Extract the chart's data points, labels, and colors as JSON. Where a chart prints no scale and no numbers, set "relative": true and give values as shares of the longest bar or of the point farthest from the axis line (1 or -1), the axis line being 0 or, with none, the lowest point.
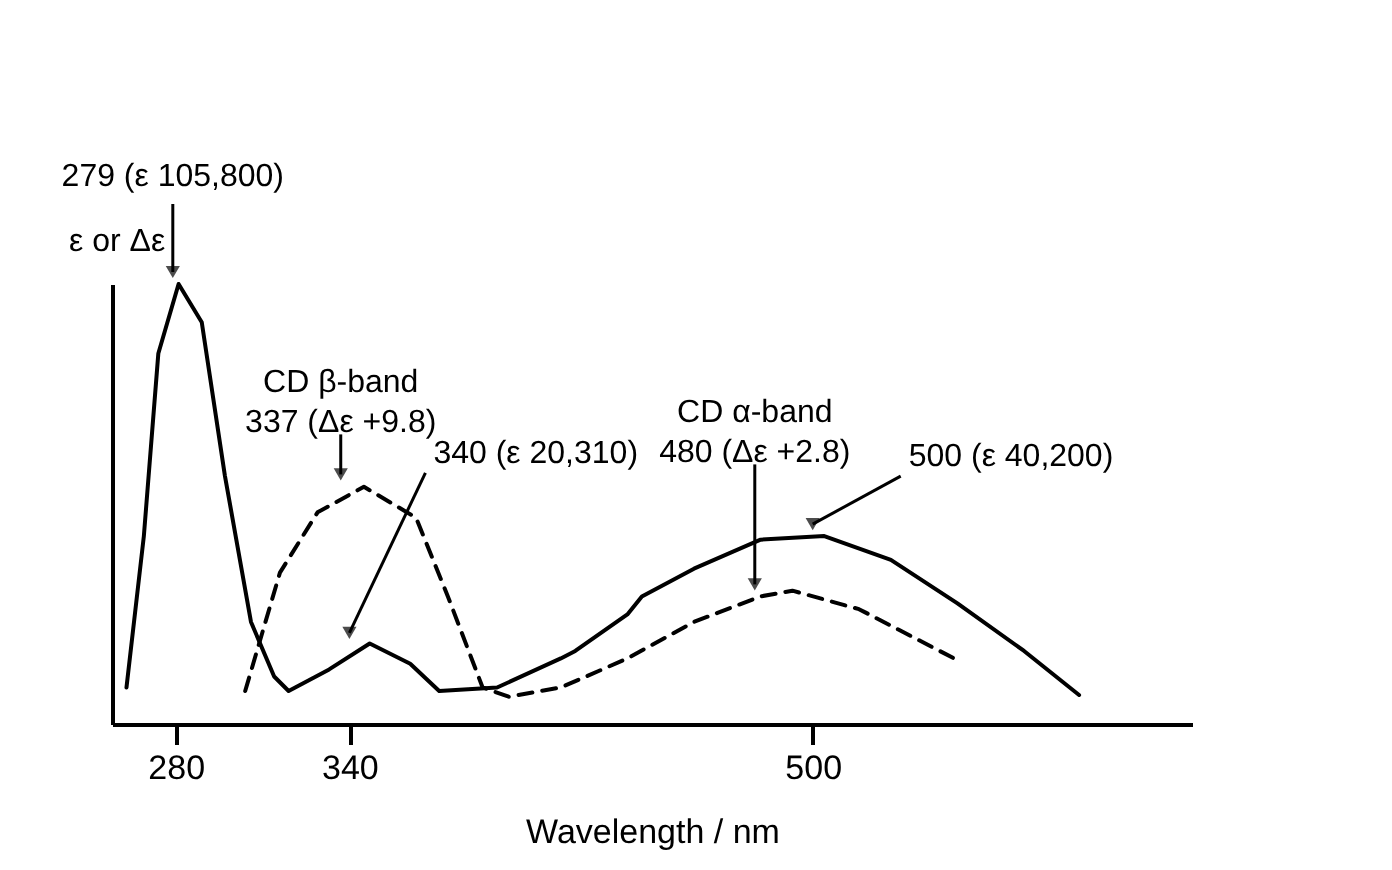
{
  "chart_data": {
    "type": "line",
    "relative": true,
    "xlabel": "Wavelength / nm",
    "ylabel": "ε or Δε",
    "xlim": [
      258,
      631
    ],
    "xticks": [
      280,
      340,
      500
    ],
    "marker": "none",
    "series": [
      {
        "color": "#000000",
        "line_style": "solid",
        "x": [
          263,
          269,
          274,
          281,
          289,
          297,
          306,
          314,
          319,
          333,
          347,
          361,
          371,
          391,
          413,
          418,
          436,
          441,
          459,
          482,
          504,
          527,
          550,
          573,
          592
        ],
        "values": [
          0.083,
          0.427,
          0.842,
          1.0,
          0.913,
          0.564,
          0.232,
          0.108,
          0.075,
          0.124,
          0.183,
          0.137,
          0.075,
          0.083,
          0.149,
          0.166,
          0.249,
          0.29,
          0.353,
          0.419,
          0.427,
          0.373,
          0.274,
          0.166,
          0.066
        ]
      },
      {
        "color": "#000000",
        "line_style": "dashed",
        "x": [
          304,
          316,
          329,
          345,
          363,
          374,
          386,
          395,
          413,
          436,
          459,
          482,
          493,
          516,
          550
        ],
        "values": [
          0.075,
          0.344,
          0.481,
          0.539,
          0.469,
          0.29,
          0.083,
          0.062,
          0.083,
          0.149,
          0.232,
          0.29,
          0.303,
          0.261,
          0.145
        ]
      }
    ],
    "annotations": [
      {
        "text": "279 (ε 105,800)",
        "x": 279,
        "y": 1.0
      },
      {
        "text": "CD β-band\n337 (Δε +9.8)",
        "x": 337,
        "y": 0.54
      },
      {
        "text": "340 (ε 20,310)",
        "x": 340,
        "y": 0.18
      },
      {
        "text": "CD α-band\n480 (Δε +2.8)",
        "x": 480,
        "y": 0.29
      },
      {
        "text": "500 (ε 40,200)",
        "x": 500,
        "y": 0.427
      }
    ]
  }
}
